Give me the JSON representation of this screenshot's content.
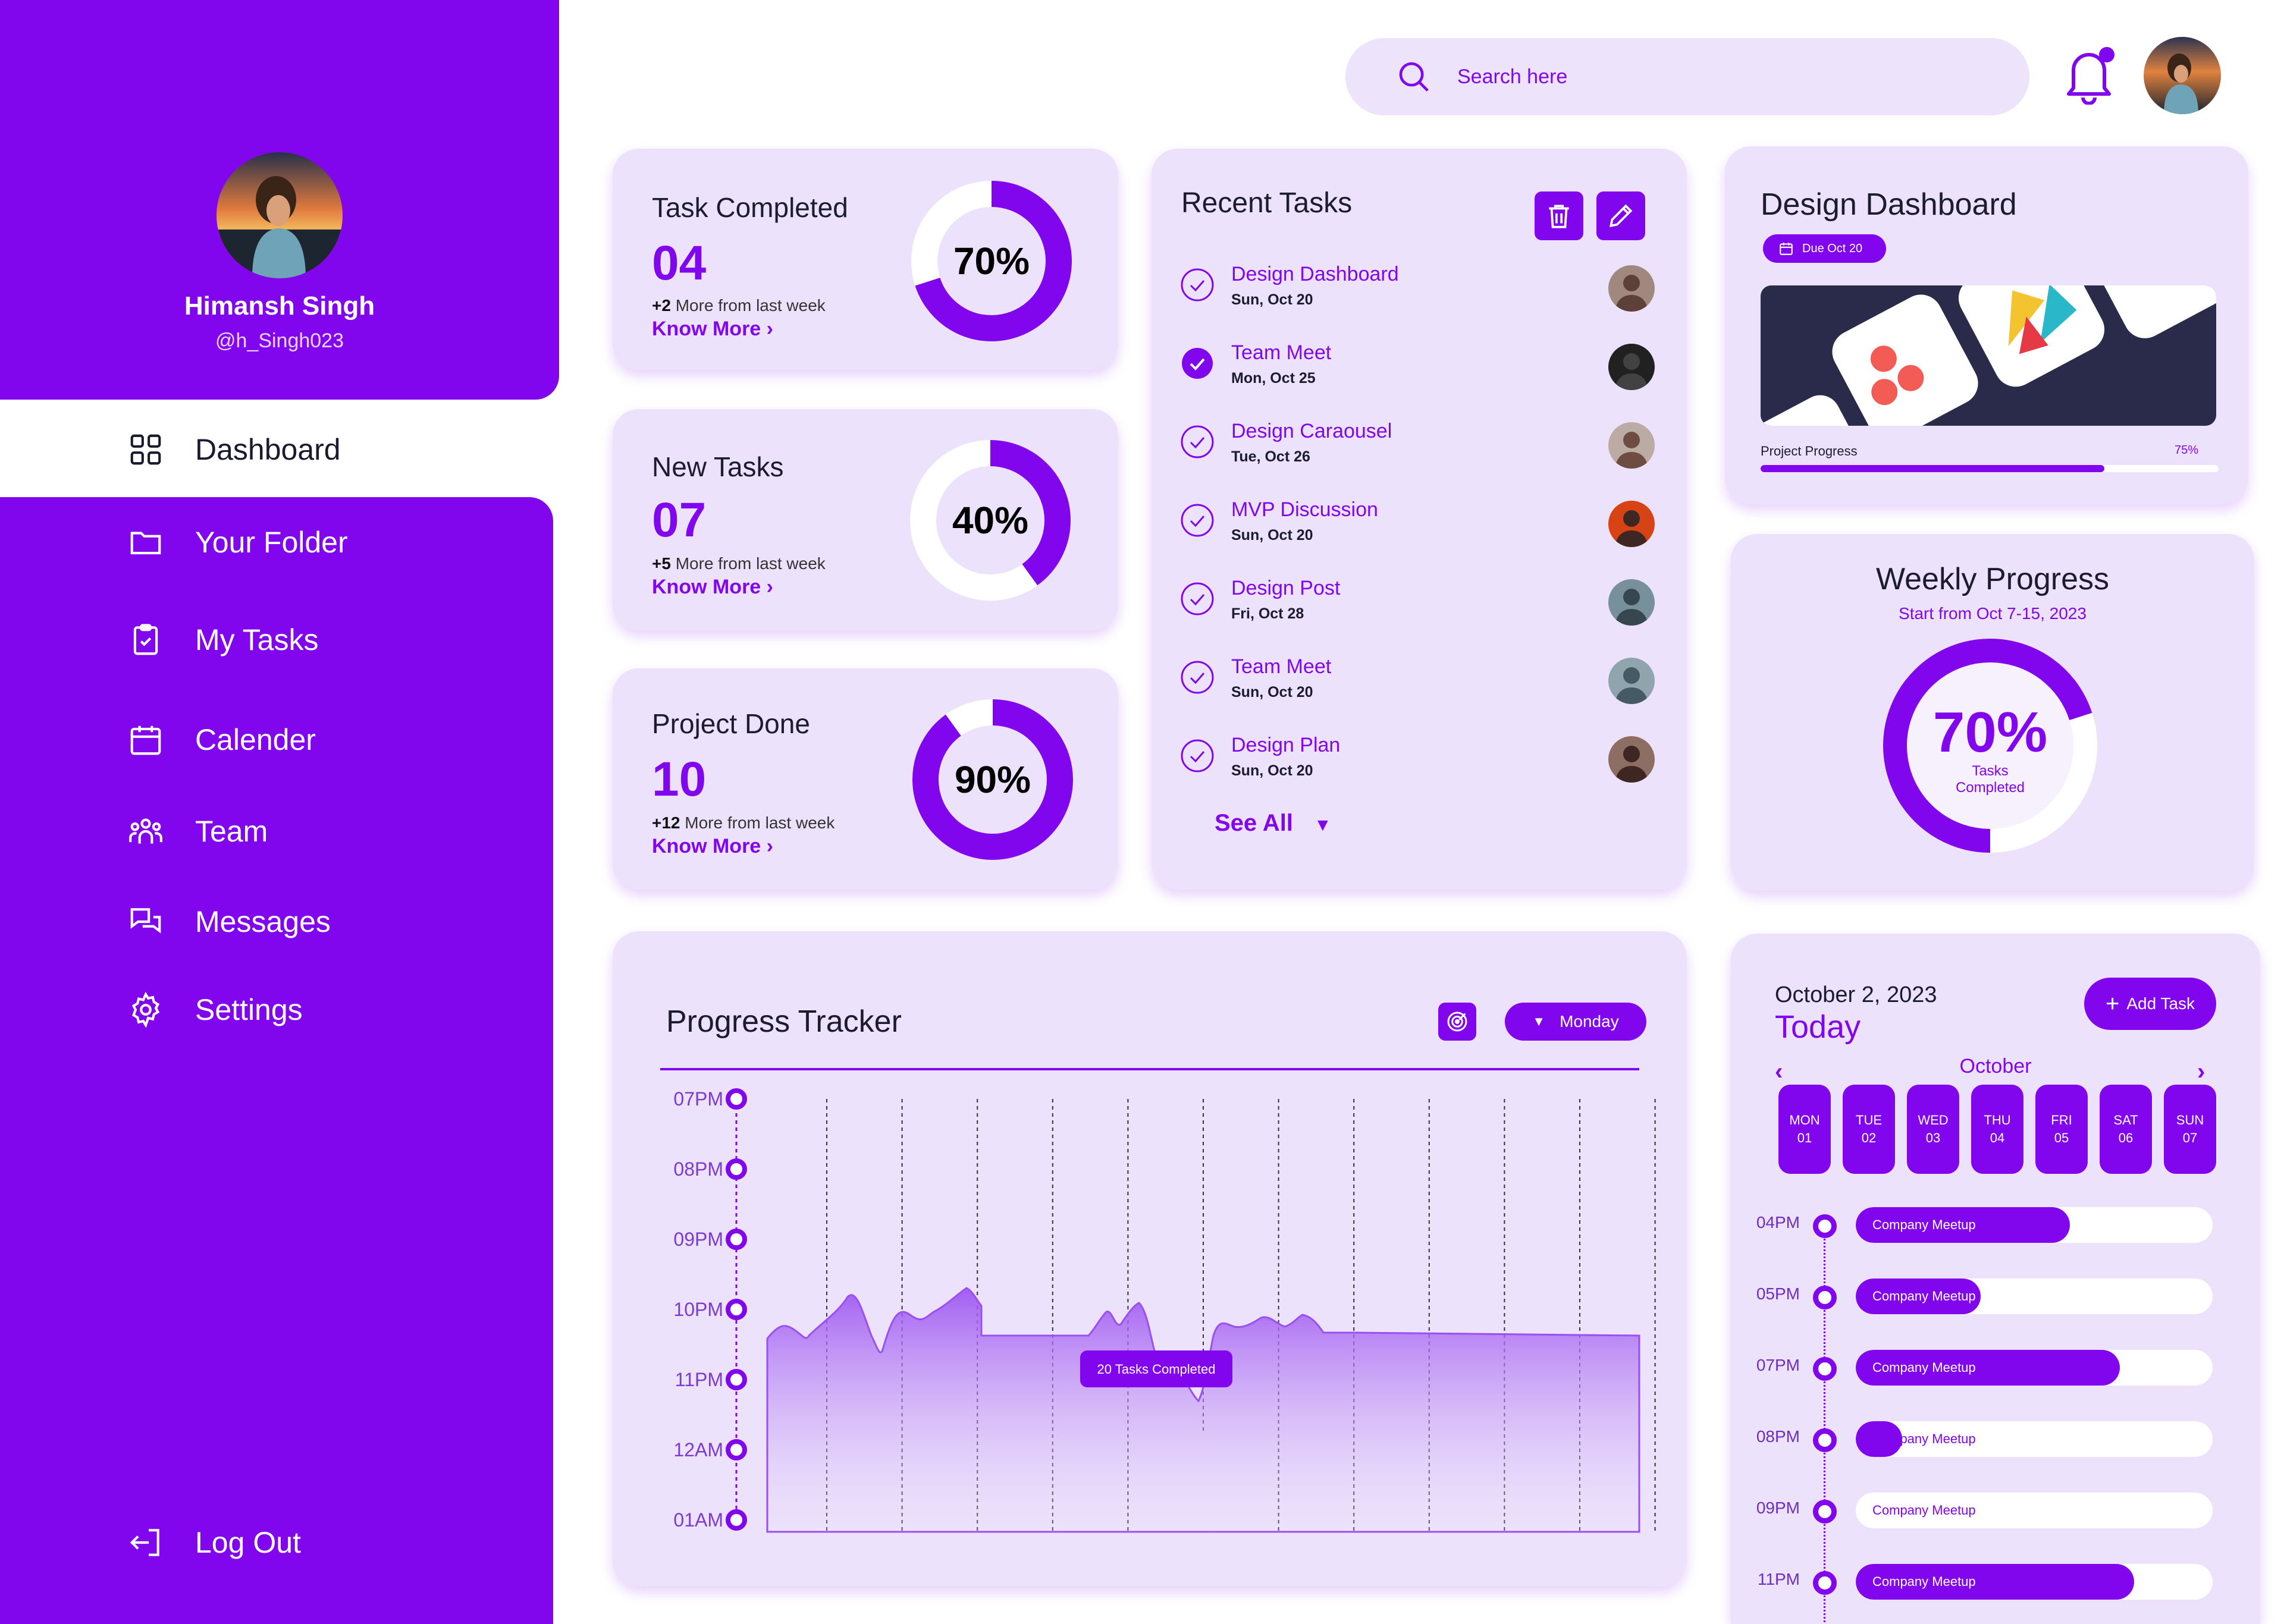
{
  "colors": {
    "accent": "#8106ee",
    "card": "#ece2fb",
    "light": "#f6f1fd"
  },
  "profile": {
    "name": "Himansh Singh",
    "handle": "@h_Singh023"
  },
  "nav": {
    "items": [
      {
        "label": "Dashboard",
        "icon": "grid-icon"
      },
      {
        "label": "Your Folder",
        "icon": "folder-icon"
      },
      {
        "label": "My Tasks",
        "icon": "clipboard-check-icon"
      },
      {
        "label": "Calender",
        "icon": "calendar-icon"
      },
      {
        "label": "Team",
        "icon": "team-icon"
      },
      {
        "label": "Messages",
        "icon": "messages-icon"
      },
      {
        "label": "Settings",
        "icon": "gear-icon"
      }
    ],
    "logout": "Log Out"
  },
  "search": {
    "placeholder": "Search here"
  },
  "stats": [
    {
      "title": "Task Completed",
      "value": "04",
      "delta": "+2",
      "delta_text": "More from last week",
      "link": "Know More",
      "percent": 70,
      "percent_label": "70%"
    },
    {
      "title": "New Tasks",
      "value": "07",
      "delta": "+5",
      "delta_text": "More from last week",
      "link": "Know More",
      "percent": 40,
      "percent_label": "40%"
    },
    {
      "title": "Project Done",
      "value": "10",
      "delta": "+12",
      "delta_text": "More from last week",
      "link": "Know More",
      "percent": 90,
      "percent_label": "90%"
    }
  ],
  "recent_tasks": {
    "title": "Recent Tasks",
    "items": [
      {
        "name": "Design Dashboard",
        "date": "Sun, Oct 20",
        "done": false
      },
      {
        "name": "Team Meet",
        "date": "Mon, Oct 25",
        "done": true
      },
      {
        "name": "Design Caraousel",
        "date": "Tue, Oct 26",
        "done": false
      },
      {
        "name": "MVP Discussion",
        "date": "Sun, Oct 20",
        "done": false
      },
      {
        "name": "Design Post",
        "date": "Fri, Oct 28",
        "done": false
      },
      {
        "name": "Team Meet",
        "date": "Sun, Oct 20",
        "done": false
      },
      {
        "name": "Design Plan",
        "date": "Sun, Oct 20",
        "done": false
      }
    ],
    "see_all": "See All"
  },
  "design_card": {
    "title": "Design Dashboard",
    "due": "Due Oct 20",
    "progress_label": "Project Progress",
    "progress": 75,
    "progress_text": "75%"
  },
  "weekly": {
    "title": "Weekly Progress",
    "subtitle": "Start from Oct 7-15, 2023",
    "percent": 70,
    "percent_label": "70%",
    "caption_1": "Tasks",
    "caption_2": "Completed"
  },
  "tracker": {
    "title": "Progress Tracker",
    "filter": "Monday",
    "times": [
      "07PM",
      "08PM",
      "09PM",
      "10PM",
      "11PM",
      "12AM",
      "01AM"
    ],
    "tooltip": "20 Tasks Completed"
  },
  "calendar": {
    "date": "October 2, 2023",
    "today": "Today",
    "add_task": "Add Task",
    "month": "October",
    "days": [
      {
        "dow": "MON",
        "day": "01"
      },
      {
        "dow": "TUE",
        "day": "02"
      },
      {
        "dow": "WED",
        "day": "03"
      },
      {
        "dow": "THU",
        "day": "04"
      },
      {
        "dow": "FRI",
        "day": "05"
      },
      {
        "dow": "SAT",
        "day": "06"
      },
      {
        "dow": "SUN",
        "day": "07"
      }
    ],
    "schedule": [
      {
        "time": "04PM",
        "label": "Company Meetup",
        "fill": 0.6
      },
      {
        "time": "05PM",
        "label": "Company Meetup",
        "fill": 0.35
      },
      {
        "time": "07PM",
        "label": "Company Meetup",
        "fill": 0.74
      },
      {
        "time": "08PM",
        "label": "Company Meetup",
        "fill": 0.13
      },
      {
        "time": "09PM",
        "label": "Company Meetup",
        "fill": 0.0
      },
      {
        "time": "11PM",
        "label": "Company Meetup",
        "fill": 0.78
      }
    ]
  }
}
